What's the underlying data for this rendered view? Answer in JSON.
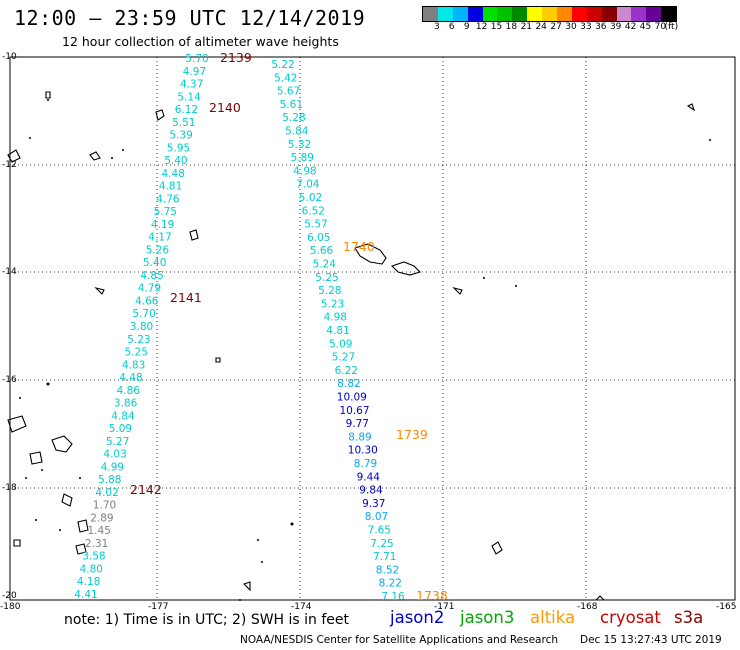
{
  "title": "12:00 – 23:59 UTC 12/14/2019",
  "subtitle": "12 hour collection of altimeter wave heights",
  "colorbar": {
    "colors": [
      "#808080",
      "#00e8e8",
      "#00b4ff",
      "#0000e0",
      "#00e000",
      "#00c000",
      "#008800",
      "#ffff00",
      "#ffcc00",
      "#ff8800",
      "#ff0000",
      "#cc0000",
      "#880000",
      "#cc88cc",
      "#9933cc",
      "#660099",
      "#000000"
    ],
    "labels": [
      "3",
      "6",
      "9",
      "12",
      "15",
      "18",
      "21",
      "24",
      "27",
      "30",
      "33",
      "36",
      "39",
      "42",
      "45",
      "70",
      "(ft)"
    ]
  },
  "lat_labels": [
    "-10",
    "-12",
    "-14",
    "-16",
    "-18",
    "-20"
  ],
  "lon_labels": [
    "-180",
    "-177",
    "-174",
    "-171",
    "-168",
    "-165"
  ],
  "passes": [
    {
      "label": "2139",
      "color": "#880000"
    },
    {
      "label": "2140",
      "color": "#880000"
    },
    {
      "label": "2141",
      "color": "#880000"
    },
    {
      "label": "2142",
      "color": "#880000"
    },
    {
      "label": "1740",
      "color": "#ff8800"
    },
    {
      "label": "1739",
      "color": "#ff8800"
    },
    {
      "label": "1738",
      "color": "#ff8800"
    }
  ],
  "track_west": [
    {
      "v": "5.70",
      "c": "#00cccc"
    },
    {
      "v": "4.97",
      "c": "#00cccc"
    },
    {
      "v": "4.37",
      "c": "#00cccc"
    },
    {
      "v": "5.14",
      "c": "#00cccc"
    },
    {
      "v": "6.12",
      "c": "#00cccc"
    },
    {
      "v": "5.51",
      "c": "#00cccc"
    },
    {
      "v": "5.39",
      "c": "#00cccc"
    },
    {
      "v": "5.95",
      "c": "#00cccc"
    },
    {
      "v": "5.40",
      "c": "#00cccc"
    },
    {
      "v": "4.48",
      "c": "#00cccc"
    },
    {
      "v": "4.81",
      "c": "#00cccc"
    },
    {
      "v": "4.76",
      "c": "#00cccc"
    },
    {
      "v": "5.75",
      "c": "#00cccc"
    },
    {
      "v": "4.19",
      "c": "#00cccc"
    },
    {
      "v": "4.17",
      "c": "#00cccc"
    },
    {
      "v": "5.26",
      "c": "#00cccc"
    },
    {
      "v": "5.40",
      "c": "#00cccc"
    },
    {
      "v": "4.85",
      "c": "#00cccc"
    },
    {
      "v": "4.79",
      "c": "#00cccc"
    },
    {
      "v": "4.66",
      "c": "#00cccc"
    },
    {
      "v": "5.70",
      "c": "#00cccc"
    },
    {
      "v": "3.80",
      "c": "#00cccc"
    },
    {
      "v": "5.23",
      "c": "#00cccc"
    },
    {
      "v": "5.25",
      "c": "#00cccc"
    },
    {
      "v": "4.83",
      "c": "#00cccc"
    },
    {
      "v": "4.48",
      "c": "#00cccc"
    },
    {
      "v": "4.86",
      "c": "#00cccc"
    },
    {
      "v": "3.86",
      "c": "#00cccc"
    },
    {
      "v": "4.84",
      "c": "#00cccc"
    },
    {
      "v": "5.09",
      "c": "#00cccc"
    },
    {
      "v": "5.27",
      "c": "#00cccc"
    },
    {
      "v": "4.03",
      "c": "#00cccc"
    },
    {
      "v": "4.99",
      "c": "#00cccc"
    },
    {
      "v": "5.88",
      "c": "#00cccc"
    },
    {
      "v": "4.02",
      "c": "#00cccc"
    },
    {
      "v": "1.70",
      "c": "#808080"
    },
    {
      "v": "2.89",
      "c": "#808080"
    },
    {
      "v": "1.45",
      "c": "#808080"
    },
    {
      "v": "2.31",
      "c": "#808080"
    },
    {
      "v": "3.58",
      "c": "#00cccc"
    },
    {
      "v": "4.80",
      "c": "#00cccc"
    },
    {
      "v": "4.18",
      "c": "#00cccc"
    },
    {
      "v": "4.41",
      "c": "#00cccc"
    }
  ],
  "track_east": [
    {
      "v": "5.22",
      "c": "#00cccc"
    },
    {
      "v": "5.42",
      "c": "#00cccc"
    },
    {
      "v": "5.67",
      "c": "#00cccc"
    },
    {
      "v": "5.61",
      "c": "#00cccc"
    },
    {
      "v": "5.28",
      "c": "#00cccc"
    },
    {
      "v": "5.84",
      "c": "#00cccc"
    },
    {
      "v": "5.32",
      "c": "#00cccc"
    },
    {
      "v": "5.89",
      "c": "#00cccc"
    },
    {
      "v": "4.98",
      "c": "#00cccc"
    },
    {
      "v": "7.04",
      "c": "#00cccc"
    },
    {
      "v": "5.02",
      "c": "#00cccc"
    },
    {
      "v": "6.52",
      "c": "#00cccc"
    },
    {
      "v": "5.57",
      "c": "#00cccc"
    },
    {
      "v": "6.05",
      "c": "#00cccc"
    },
    {
      "v": "5.66",
      "c": "#00cccc"
    },
    {
      "v": "5.24",
      "c": "#00cccc"
    },
    {
      "v": "5.25",
      "c": "#00cccc"
    },
    {
      "v": "5.28",
      "c": "#00cccc"
    },
    {
      "v": "5.23",
      "c": "#00cccc"
    },
    {
      "v": "4.98",
      "c": "#00cccc"
    },
    {
      "v": "4.81",
      "c": "#00cccc"
    },
    {
      "v": "5.09",
      "c": "#00cccc"
    },
    {
      "v": "5.27",
      "c": "#00cccc"
    },
    {
      "v": "6.22",
      "c": "#00cccc"
    },
    {
      "v": "8.82",
      "c": "#00aaee"
    },
    {
      "v": "10.09",
      "c": "#0000cc"
    },
    {
      "v": "10.67",
      "c": "#0000cc"
    },
    {
      "v": "9.77",
      "c": "#0000cc"
    },
    {
      "v": "8.89",
      "c": "#00aaee"
    },
    {
      "v": "10.30",
      "c": "#0000cc"
    },
    {
      "v": "8.79",
      "c": "#00aaee"
    },
    {
      "v": "9.44",
      "c": "#0000cc"
    },
    {
      "v": "9.84",
      "c": "#0000cc"
    },
    {
      "v": "9.37",
      "c": "#0000cc"
    },
    {
      "v": "8.07",
      "c": "#00aaee"
    },
    {
      "v": "7.65",
      "c": "#00cccc"
    },
    {
      "v": "7.25",
      "c": "#00cccc"
    },
    {
      "v": "7.71",
      "c": "#00cccc"
    },
    {
      "v": "8.52",
      "c": "#00aaee"
    },
    {
      "v": "8.22",
      "c": "#00aaee"
    },
    {
      "v": "7.16",
      "c": "#00cccc"
    }
  ],
  "note": "note:  1) Time is in UTC;  2) SWH is in feet",
  "legend": [
    {
      "label": "jason2",
      "color": "#0000cc"
    },
    {
      "label": "jason3",
      "color": "#00aa00"
    },
    {
      "label": "altika",
      "color": "#ff9900"
    },
    {
      "label": "cryosat",
      "color": "#cc0000"
    },
    {
      "label": "s3a",
      "color": "#880000"
    }
  ],
  "credit": "NOAA/NESDIS Center for Satellite Applications and Research",
  "timestamp": "Dec 15 13:27:43 UTC 2019"
}
